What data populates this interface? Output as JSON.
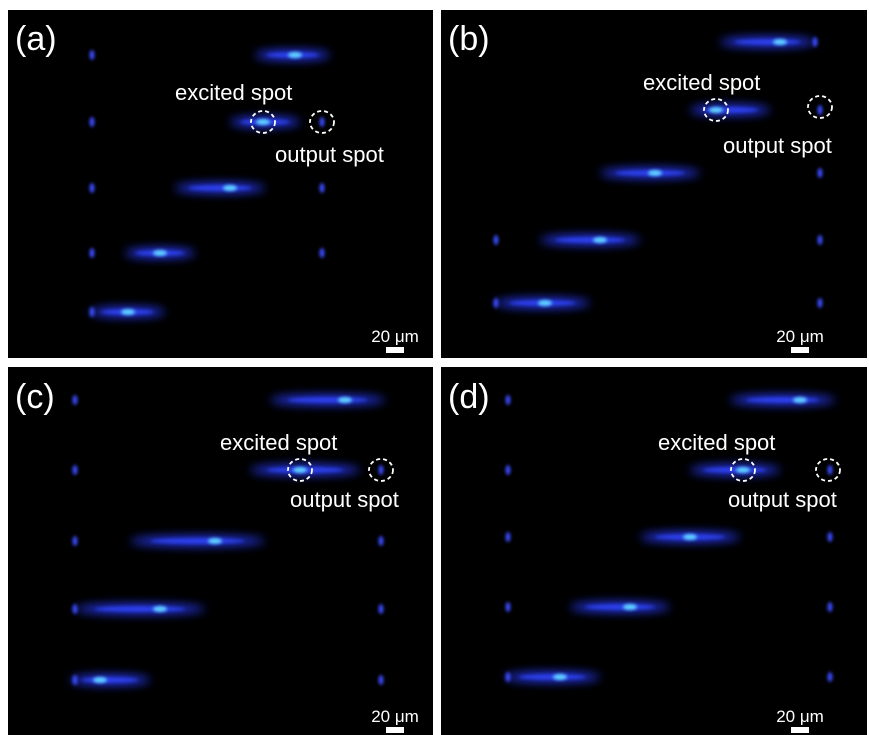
{
  "panels": [
    {
      "label": "(a)",
      "excited_label": "excited spot",
      "output_label": "output spot",
      "scale_bar": "20 μm"
    },
    {
      "label": "(b)",
      "excited_label": "excited spot",
      "output_label": "output spot",
      "scale_bar": "20 μm"
    },
    {
      "label": "(c)",
      "excited_label": "excited spot",
      "output_label": "output spot",
      "scale_bar": "20 μm"
    },
    {
      "label": "(d)",
      "excited_label": "excited spot",
      "output_label": "output spot",
      "scale_bar": "20 μm"
    }
  ]
}
